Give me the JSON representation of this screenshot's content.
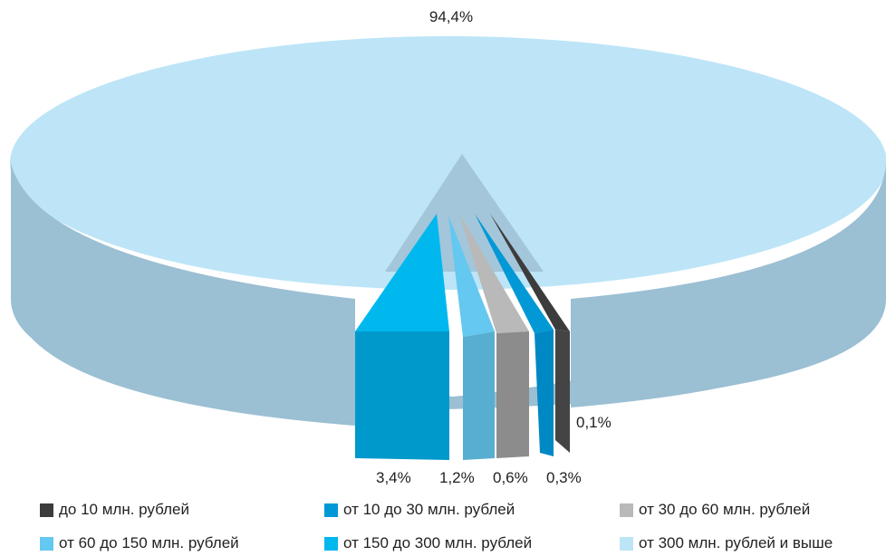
{
  "chart_data": {
    "type": "pie",
    "style": "3d-exploded",
    "categories": [
      "до 10 млн. рублей",
      "от 10 до 30 млн. рублей",
      "от 30 до 60 млн. рублей",
      "от 60 до 150 млн. рублей",
      "от 150 до 300 млн. рублей",
      "от 300 млн. рублей и выше"
    ],
    "values": [
      0.1,
      0.3,
      0.6,
      1.2,
      3.4,
      94.4
    ],
    "labels": [
      "0,1%",
      "0,3%",
      "0,6%",
      "1,2%",
      "3,4%",
      "94,4%"
    ],
    "colors": [
      "#3c3c3c",
      "#0099d6",
      "#b9b9b9",
      "#64c8f0",
      "#00b8ee",
      "#bde5f7"
    ],
    "side_colors": [
      "#444444",
      "#0088c4",
      "#8c8c8c",
      "#58aed0",
      "#0099cc",
      "#9bbfd3"
    ],
    "legend_position": "bottom"
  }
}
